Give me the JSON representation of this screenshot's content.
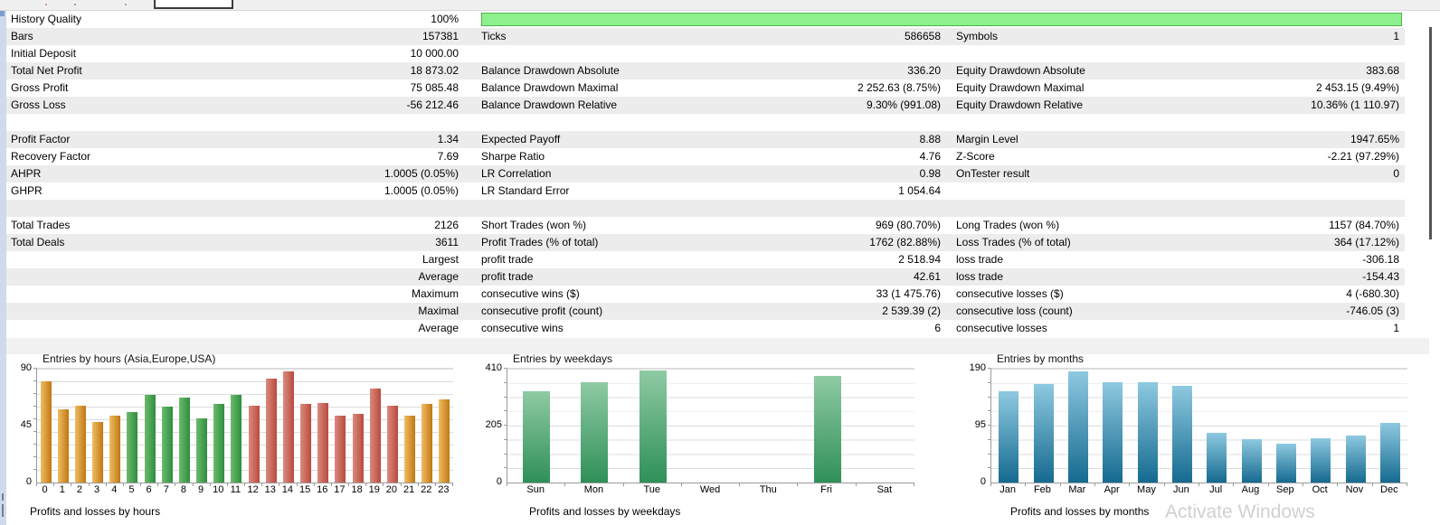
{
  "table": {
    "rows": [
      {
        "ll": "History Quality",
        "lv": "100%",
        "progress": true
      },
      {
        "ll": "Bars",
        "lv": "157381",
        "ml": "Ticks",
        "mv": "586658",
        "rl": "Symbols",
        "rv": "1",
        "shaded": true
      },
      {
        "ll": "Initial Deposit",
        "lv": "10 000.00"
      },
      {
        "ll": "Total Net Profit",
        "lv": "18 873.02",
        "ml": "Balance Drawdown Absolute",
        "mv": "336.20",
        "rl": "Equity Drawdown Absolute",
        "rv": "383.68",
        "shaded": true
      },
      {
        "ll": "Gross Profit",
        "lv": "75 085.48",
        "ml": "Balance Drawdown Maximal",
        "mv": "2 252.63 (8.75%)",
        "rl": "Equity Drawdown Maximal",
        "rv": "2 453.15 (9.49%)"
      },
      {
        "ll": "Gross Loss",
        "lv": "-56 212.46",
        "ml": "Balance Drawdown Relative",
        "mv": "9.30% (991.08)",
        "rl": "Equity Drawdown Relative",
        "rv": "10.36% (1 110.97)",
        "shaded": true
      },
      {},
      {
        "ll": "Profit Factor",
        "lv": "1.34",
        "ml": "Expected Payoff",
        "mv": "8.88",
        "rl": "Margin Level",
        "rv": "1947.65%",
        "shaded": true
      },
      {
        "ll": "Recovery Factor",
        "lv": "7.69",
        "ml": "Sharpe Ratio",
        "mv": "4.76",
        "rl": "Z-Score",
        "rv": "-2.21 (97.29%)"
      },
      {
        "ll": "AHPR",
        "lv": "1.0005 (0.05%)",
        "ml": "LR Correlation",
        "mv": "0.98",
        "rl": "OnTester result",
        "rv": "0",
        "shaded": true
      },
      {
        "ll": "GHPR",
        "lv": "1.0005 (0.05%)",
        "ml": "LR Standard Error",
        "mv": "1 054.64"
      },
      {
        "shaded": true
      },
      {
        "ll": "Total Trades",
        "lv": "2126",
        "ml": "Short Trades (won %)",
        "mv": "969 (80.70%)",
        "rl": "Long Trades (won %)",
        "rv": "1157 (84.70%)"
      },
      {
        "ll": "Total Deals",
        "lv": "3611",
        "ml": "Profit Trades (% of total)",
        "mv": "1762 (82.88%)",
        "rl": "Loss Trades (% of total)",
        "rv": "364 (17.12%)",
        "shaded": true
      },
      {
        "lv": "Largest",
        "ml": "profit trade",
        "mv": "2 518.94",
        "rl": "loss trade",
        "rv": "-306.18"
      },
      {
        "lv": "Average",
        "ml": "profit trade",
        "mv": "42.61",
        "rl": "loss trade",
        "rv": "-154.43",
        "shaded": true
      },
      {
        "lv": "Maximum",
        "ml": "consecutive wins ($)",
        "mv": "33 (1 475.76)",
        "rl": "consecutive losses ($)",
        "rv": "4 (-680.30)"
      },
      {
        "lv": "Maximal",
        "ml": "consecutive profit (count)",
        "mv": "2 539.39 (2)",
        "rl": "consecutive loss (count)",
        "rv": "-746.05 (3)",
        "shaded": true
      },
      {
        "lv": "Average",
        "ml": "consecutive wins",
        "mv": "6",
        "rl": "consecutive losses",
        "rv": "1"
      }
    ],
    "progress_color": "#8df08d",
    "row_stripe_color": "#ececec"
  },
  "chart_data": [
    {
      "type": "bar",
      "title": "Entries by hours (Asia,Europe,USA)",
      "categories": [
        "0",
        "1",
        "2",
        "3",
        "4",
        "5",
        "6",
        "7",
        "8",
        "9",
        "10",
        "11",
        "12",
        "13",
        "14",
        "15",
        "16",
        "17",
        "18",
        "19",
        "20",
        "21",
        "22",
        "23"
      ],
      "values": [
        80,
        58,
        61,
        48,
        53,
        56,
        69,
        60,
        67,
        51,
        62,
        69,
        61,
        82,
        88,
        62,
        63,
        53,
        54,
        74,
        61,
        53,
        62,
        66
      ],
      "colors": [
        "orange",
        "orange",
        "orange",
        "orange",
        "orange",
        "green",
        "green",
        "green",
        "green",
        "green",
        "green",
        "green",
        "red",
        "red",
        "red",
        "red",
        "red",
        "red",
        "red",
        "red",
        "red",
        "orange",
        "orange",
        "orange"
      ],
      "palette": {
        "orange": [
          "#f0bd62",
          "#c07714"
        ],
        "green": [
          "#6cbb6c",
          "#2e8e3e"
        ],
        "red": [
          "#d98b7e",
          "#b94b3e"
        ]
      },
      "gradient_dir": "h",
      "ylim": [
        0,
        90
      ],
      "yticks": [
        0,
        45,
        90
      ],
      "grid_step": 10,
      "xlabel": "",
      "ylabel": "",
      "grid": true,
      "legend": "none"
    },
    {
      "type": "bar",
      "title": "Entries by weekdays",
      "categories": [
        "Sun",
        "Mon",
        "Tue",
        "Wed",
        "Thu",
        "Fri",
        "Sat"
      ],
      "values": [
        330,
        360,
        405,
        0,
        0,
        385,
        0
      ],
      "bar_gradient": [
        "#8fcaa4",
        "#2f9058"
      ],
      "gradient_dir": "v",
      "ylim": [
        0,
        410
      ],
      "yticks": [
        0,
        205,
        410
      ],
      "grid_step": 51.25,
      "xlabel": "",
      "ylabel": "",
      "grid": true,
      "legend": "none"
    },
    {
      "type": "bar",
      "title": "Entries by months",
      "categories": [
        "Jan",
        "Feb",
        "Mar",
        "Apr",
        "May",
        "Jun",
        "Jul",
        "Aug",
        "Sep",
        "Oct",
        "Nov",
        "Dec"
      ],
      "values": [
        152,
        164,
        186,
        167,
        167,
        161,
        83,
        73,
        65,
        74,
        79,
        100
      ],
      "bar_gradient": [
        "#8ec9e0",
        "#156a90"
      ],
      "gradient_dir": "v",
      "ylim": [
        0,
        190
      ],
      "yticks": [
        0,
        95,
        190
      ],
      "grid_step": 23.75,
      "xlabel": "",
      "ylabel": "",
      "grid": true,
      "legend": "none"
    }
  ],
  "bottom_titles": [
    "Profits and losses by hours",
    "Profits and losses by weekdays",
    "Profits and losses by months"
  ],
  "watermark": "Activate Windows"
}
